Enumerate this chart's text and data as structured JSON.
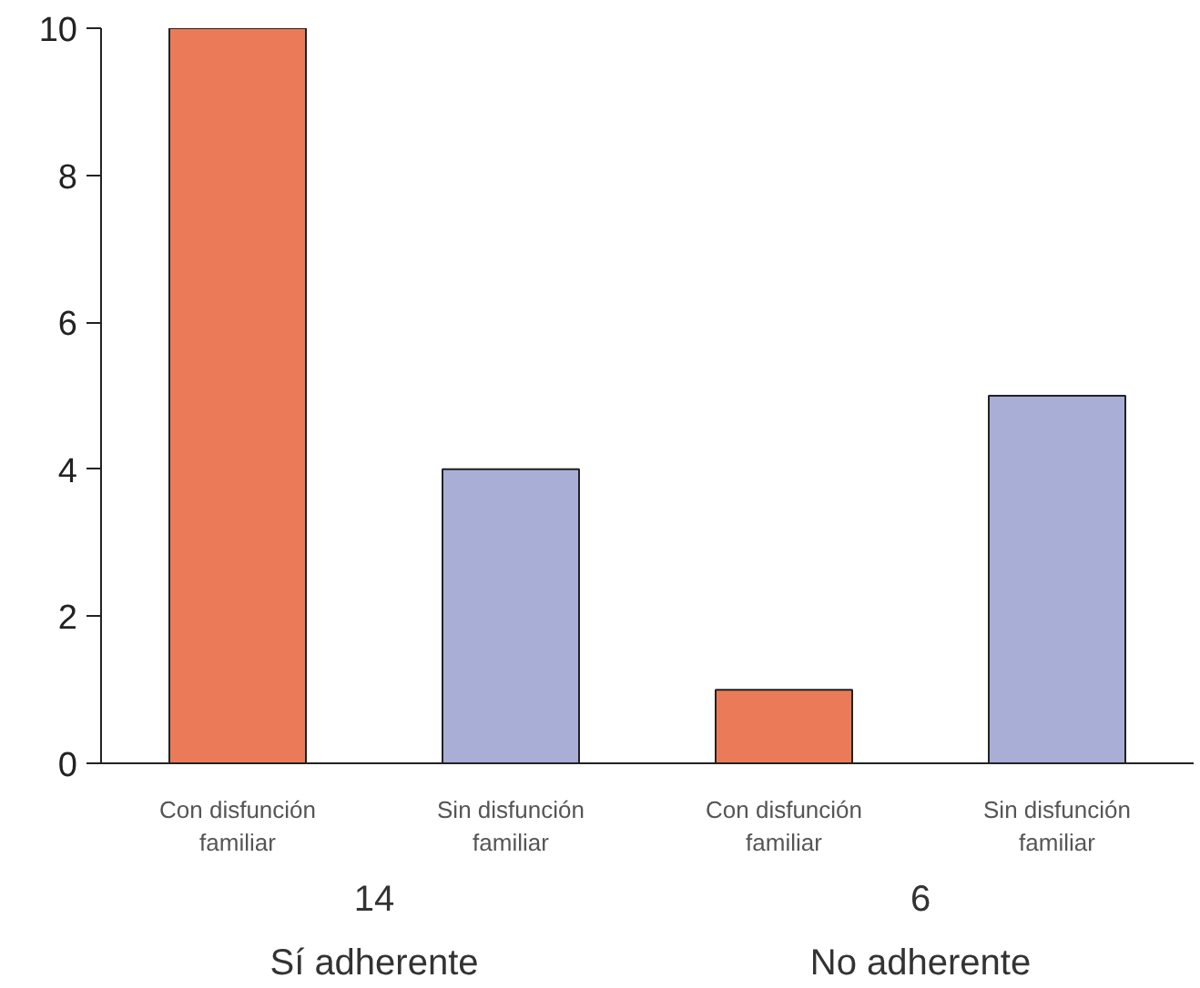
{
  "chart_data": {
    "type": "bar",
    "categories": [
      "Con disfunción\nfamiliar",
      "Sin disfunción\nfamiliar",
      "Con disfunción\nfamiliar",
      "Sin disfunción\nfamiliar"
    ],
    "values": [
      10,
      4,
      1,
      5
    ],
    "colors": [
      "#eb7b58",
      "#a9aed6",
      "#eb7b58",
      "#a9aed6"
    ],
    "ylim": [
      0,
      10
    ],
    "yticks": [
      0,
      2,
      4,
      6,
      8,
      10
    ],
    "grid": false,
    "annotations": [
      "14",
      "Sí adherente",
      "6",
      "No adherente"
    ]
  }
}
